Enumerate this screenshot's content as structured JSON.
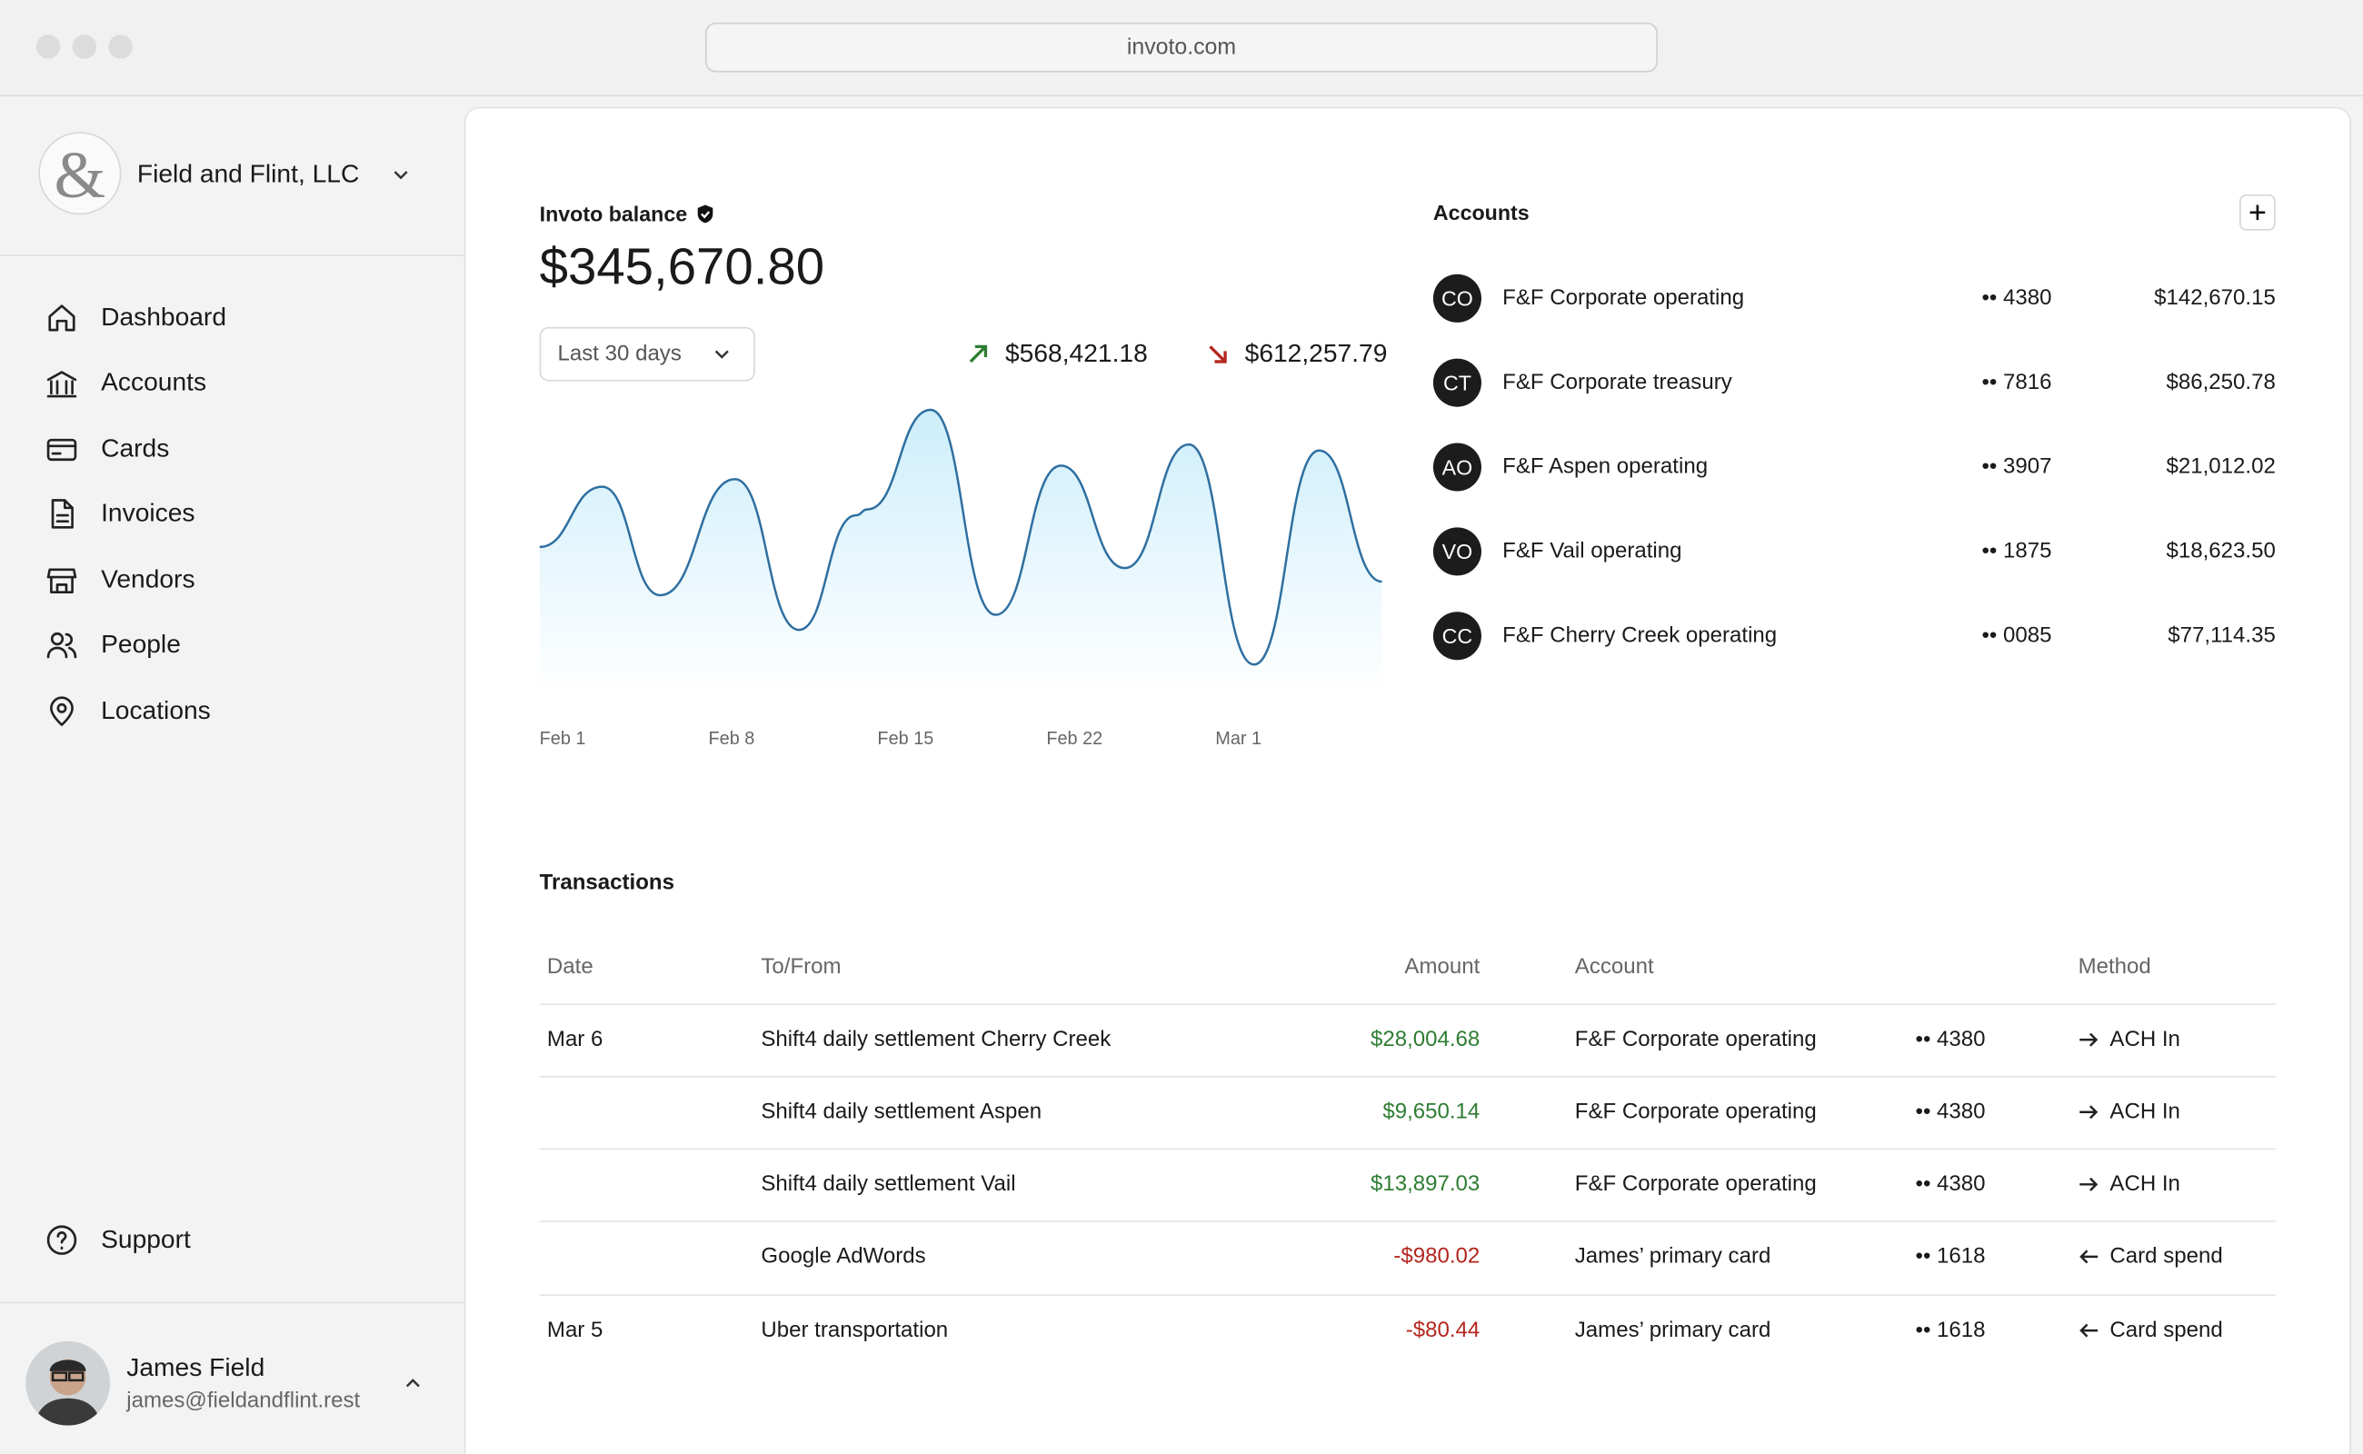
{
  "browser": {
    "url": "invoto.com"
  },
  "sidebar": {
    "org": "Field and Flint, LLC",
    "nav": [
      "Dashboard",
      "Accounts",
      "Cards",
      "Invoices",
      "Vendors",
      "People",
      "Locations"
    ],
    "support": "Support",
    "user": {
      "name": "James Field",
      "email": "james@fieldandflint.rest"
    }
  },
  "balance": {
    "label": "Invoto balance",
    "amount": "$345,670.80",
    "period": "Last 30 days",
    "inflow": "$568,421.18",
    "outflow": "$612,257.79"
  },
  "chart_data": {
    "type": "line",
    "x": [
      0,
      2.6,
      5,
      8.1,
      10.75,
      13.1,
      13.6,
      16.2,
      18.9,
      21.6,
      24.25,
      26.9,
      29.6,
      32.3,
      34.9
    ],
    "values": [
      48.5,
      68.5,
      32.5,
      71,
      21,
      59,
      61,
      94,
      26,
      75.5,
      41.5,
      82.5,
      9.5,
      80.5,
      37
    ],
    "xlim": [
      0,
      34.9
    ],
    "ylim": [
      0,
      100
    ],
    "xticks": [
      {
        "value": 0,
        "label": "Feb 1"
      },
      {
        "value": 7,
        "label": "Feb 8"
      },
      {
        "value": 14,
        "label": "Feb 15"
      },
      {
        "value": 21,
        "label": "Feb 22"
      },
      {
        "value": 28,
        "label": "Mar 1"
      }
    ],
    "color": "#2f6fa0"
  },
  "accounts": {
    "title": "Accounts",
    "rows": [
      {
        "initials": "CO",
        "name": "F&F Corporate operating",
        "last4": "•• 4380",
        "balance": "$142,670.15"
      },
      {
        "initials": "CT",
        "name": "F&F Corporate treasury",
        "last4": "•• 7816",
        "balance": "$86,250.78"
      },
      {
        "initials": "AO",
        "name": "F&F Aspen operating",
        "last4": "•• 3907",
        "balance": "$21,012.02"
      },
      {
        "initials": "VO",
        "name": "F&F Vail operating",
        "last4": "•• 1875",
        "balance": "$18,623.50"
      },
      {
        "initials": "CC",
        "name": "F&F Cherry Creek operating",
        "last4": "•• 0085",
        "balance": "$77,114.35"
      }
    ]
  },
  "transactions": {
    "title": "Transactions",
    "columns": [
      "Date",
      "To/From",
      "Amount",
      "Account",
      "Method"
    ],
    "rows": [
      {
        "date": "Mar 6",
        "party": "Shift4 daily settlement Cherry Creek",
        "amount": "$28,004.68",
        "account": "F&F Corporate operating",
        "last4": "•• 4380",
        "method": "ACH In"
      },
      {
        "party": "Shift4 daily settlement Aspen",
        "amount": "$9,650.14",
        "account": "F&F Corporate operating",
        "last4": "•• 4380",
        "method": "ACH In"
      },
      {
        "party": "Shift4 daily settlement Vail",
        "amount": "$13,897.03",
        "account": "F&F Corporate operating",
        "last4": "•• 4380",
        "method": "ACH In"
      },
      {
        "party": "Google AdWords",
        "amount": "-$980.02",
        "account": "James’ primary card",
        "last4": "•• 1618",
        "method": "Card spend"
      },
      {
        "date": "Mar 5",
        "party": "Uber transportation",
        "amount": "-$80.44",
        "account": "James’ primary card",
        "last4": "•• 1618",
        "method": "Card spend"
      }
    ]
  }
}
